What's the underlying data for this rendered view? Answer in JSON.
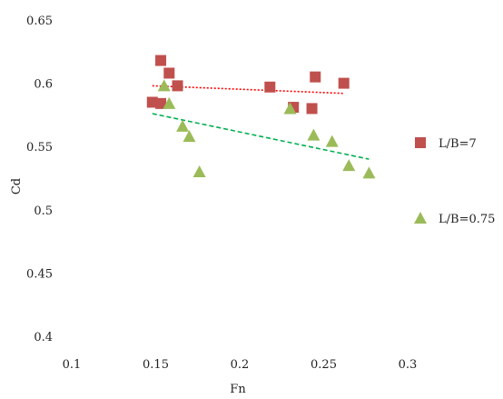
{
  "chart_data": {
    "type": "scatter",
    "xlabel": "Fn",
    "ylabel": "Cd",
    "xlim": [
      0.1,
      0.3
    ],
    "ylim": [
      0.4,
      0.65
    ],
    "x_ticks": [
      "0.1",
      "0.15",
      "0.2",
      "0.25",
      "0.3"
    ],
    "y_ticks": [
      "0.4",
      "0.45",
      "0.5",
      "0.55",
      "0.6",
      "0.65"
    ],
    "grid": false,
    "legend_position": "right",
    "series": [
      {
        "name": "L/B=7",
        "marker": "square",
        "color": "#c0504d",
        "x": [
          0.148,
          0.153,
          0.153,
          0.158,
          0.163,
          0.218,
          0.232,
          0.243,
          0.245,
          0.262
        ],
        "y": [
          0.585,
          0.584,
          0.618,
          0.608,
          0.598,
          0.597,
          0.581,
          0.58,
          0.605,
          0.6
        ],
        "trendline": {
          "x": [
            0.148,
            0.262
          ],
          "y": [
            0.598,
            0.592
          ],
          "color": "#ff0000",
          "style": "dotted"
        }
      },
      {
        "name": "L/B=0.75",
        "marker": "triangle",
        "color": "#9bbb59",
        "x": [
          0.155,
          0.158,
          0.166,
          0.17,
          0.176,
          0.23,
          0.244,
          0.255,
          0.265,
          0.277
        ],
        "y": [
          0.598,
          0.584,
          0.566,
          0.558,
          0.53,
          0.58,
          0.559,
          0.554,
          0.535,
          0.529
        ],
        "trendline": {
          "x": [
            0.148,
            0.277
          ],
          "y": [
            0.576,
            0.54
          ],
          "color": "#00b050",
          "style": "dashed"
        }
      }
    ]
  }
}
